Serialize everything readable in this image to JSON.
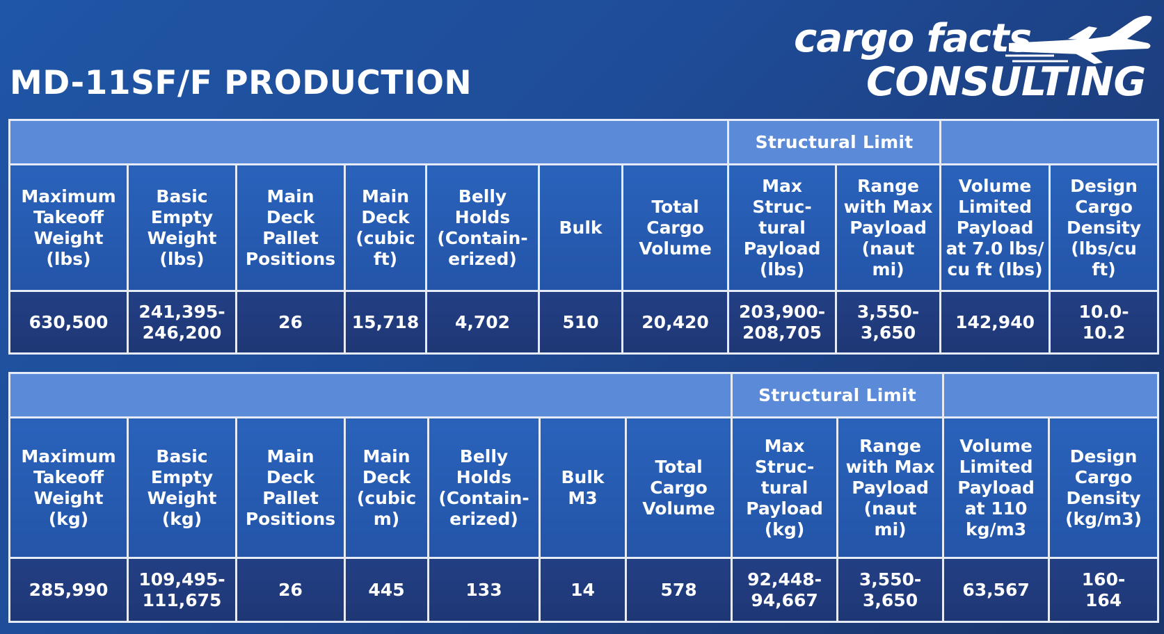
{
  "title": "MD-11SF/F PRODUCTION",
  "logo": {
    "line1": "cargo facts",
    "line2": "CONSULTING",
    "icon": "airplane-icon"
  },
  "colors": {
    "band": "#5b8bd8",
    "header_cell": "#2a62bb",
    "value_cell": "#233f84",
    "border": "#e6ecf7",
    "text": "#ffffff"
  },
  "imperial": {
    "group_label": "Structural Limit",
    "headers": [
      "Maximum\nTakeoff\nWeight\n(lbs)",
      "Basic\nEmpty\nWeight\n(lbs)",
      "Main\nDeck\nPallet\nPositions",
      "Main\nDeck\n(cubic\nft)",
      "Belly\nHolds\n(Contain-\nerized)",
      "Bulk",
      "Total\nCargo\nVolume",
      "Max\nStruc-\ntural\nPayload\n(lbs)",
      "Range\nwith Max\nPayload\n(naut\nmi)",
      "Volume\nLimited\nPayload\nat 7.0 lbs/\ncu ft (lbs)",
      "Design\nCargo\nDensity\n(lbs/cu\nft)"
    ],
    "values": [
      "630,500",
      "241,395-\n246,200",
      "26",
      "15,718",
      "4,702",
      "510",
      "20,420",
      "203,900-\n208,705",
      "3,550-\n3,650",
      "142,940",
      "10.0-\n10.2"
    ]
  },
  "metric": {
    "group_label": "Structural Limit",
    "headers": [
      "Maximum\nTakeoff\nWeight\n(kg)",
      "Basic\nEmpty\nWeight\n(kg)",
      "Main\nDeck\nPallet\nPositions",
      "Main\nDeck\n(cubic\nm)",
      "Belly\nHolds\n(Contain-\nerized)",
      "Bulk\nM3",
      "Total\nCargo\nVolume",
      "Max\nStruc-\ntural\nPayload\n(kg)",
      "Range\nwith Max\nPayload\n(naut\nmi)",
      "Volume\nLimited\nPayload\nat 110\nkg/m3",
      "Design\nCargo\nDensity\n(kg/m3)"
    ],
    "values": [
      "285,990",
      "109,495-\n111,675",
      "26",
      "445",
      "133",
      "14",
      "578",
      "92,448-\n94,667",
      "3,550-\n3,650",
      "63,567",
      "160-\n164"
    ]
  }
}
